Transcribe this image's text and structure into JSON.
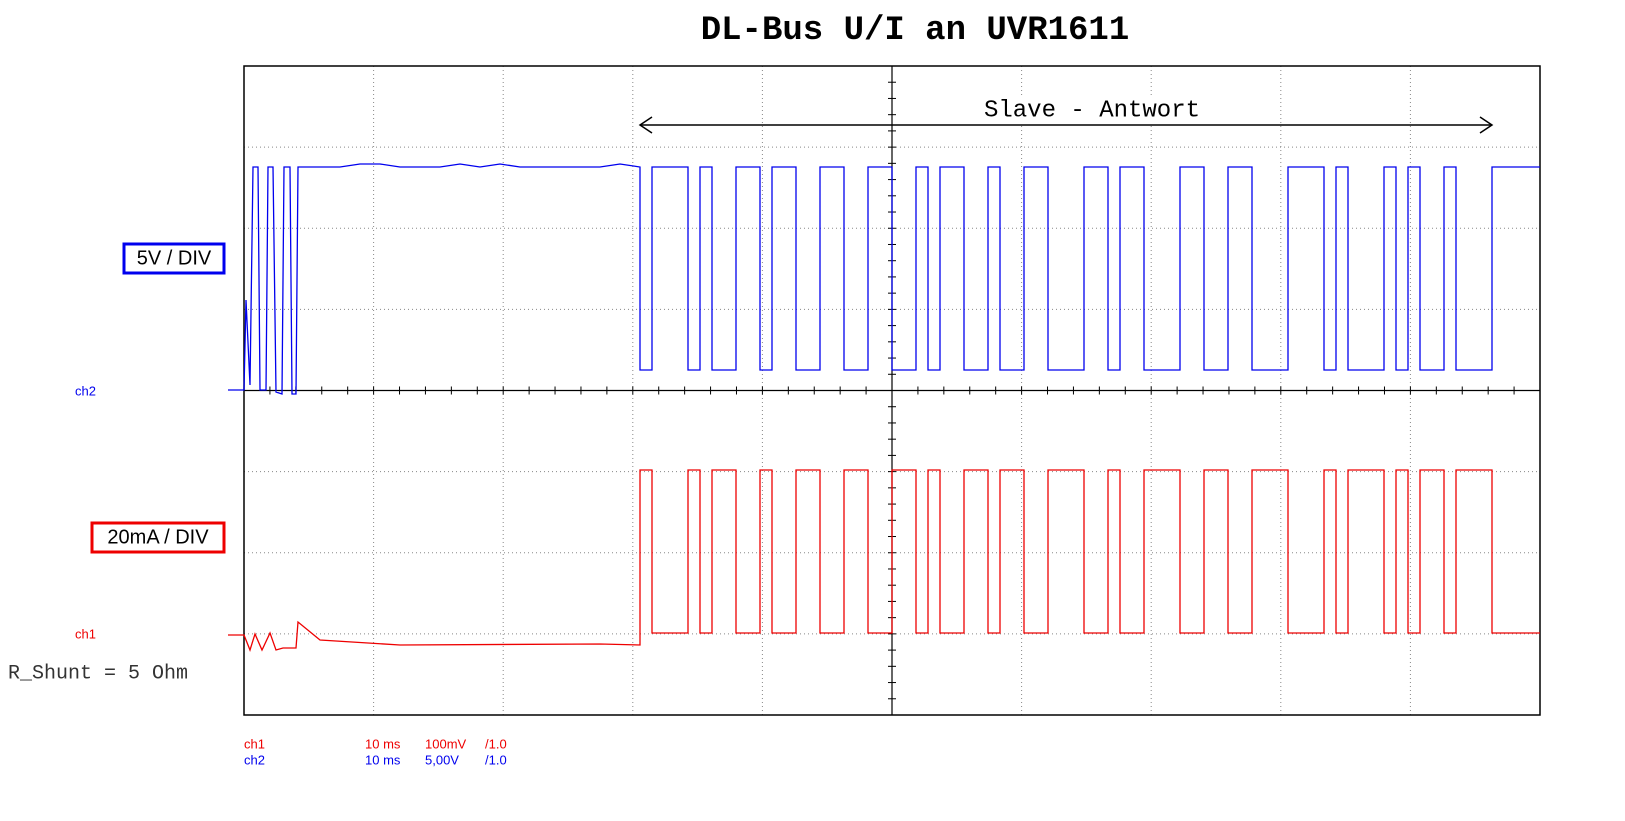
{
  "title": "DL-Bus U/I an UVR1611",
  "annotation": "Slave - Antwort",
  "channels": [
    {
      "marker": "ch2",
      "scale_label": "5V / DIV"
    },
    {
      "marker": "ch1",
      "scale_label": "20mA / DIV"
    }
  ],
  "shunt_note": "R_Shunt = 5 Ohm",
  "settings": [
    {
      "channel": "ch1",
      "timebase": "10 ms",
      "volts": "100mV",
      "probe": "/1.0"
    },
    {
      "channel": "ch2",
      "timebase": "10 ms",
      "volts": "5,00V",
      "probe": "/1.0"
    }
  ]
}
